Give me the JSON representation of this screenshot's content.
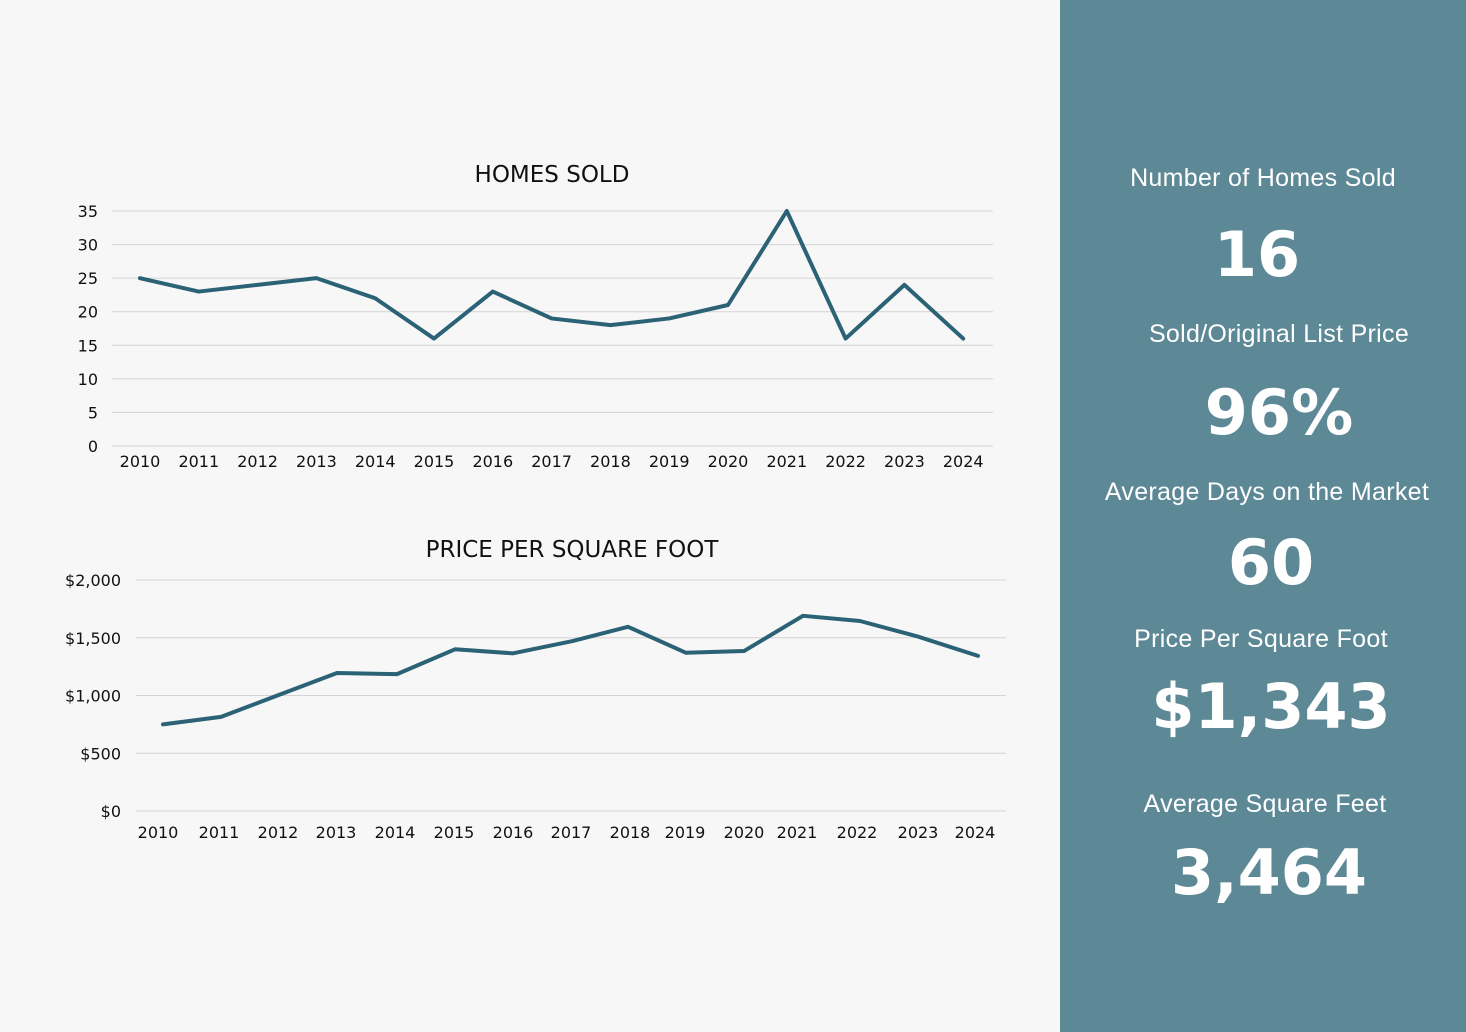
{
  "chart_data": [
    {
      "type": "line",
      "title": "HOMES SOLD",
      "x": [
        "2010",
        "2011",
        "2012",
        "2013",
        "2014",
        "2015",
        "2016",
        "2017",
        "2018",
        "2019",
        "2020",
        "2021",
        "2022",
        "2023",
        "2024"
      ],
      "series": [
        {
          "values": [
            25,
            23,
            24,
            25,
            22,
            16,
            23,
            19,
            18,
            19,
            21,
            35,
            16,
            24,
            16
          ]
        }
      ],
      "yticks": [
        "0",
        "5",
        "10",
        "15",
        "20",
        "25",
        "30",
        "35"
      ],
      "ylim": [
        0,
        35
      ],
      "grid": true,
      "legend": "none"
    },
    {
      "type": "line",
      "title": "PRICE PER SQUARE FOOT",
      "x": [
        "2010",
        "2011",
        "2012",
        "2013",
        "2014",
        "2015",
        "2016",
        "2017",
        "2018",
        "2019",
        "2020",
        "2021",
        "2022",
        "2023",
        "2024"
      ],
      "series": [
        {
          "values": [
            750,
            815,
            1005,
            1195,
            1185,
            1400,
            1365,
            1470,
            1595,
            1370,
            1385,
            1690,
            1645,
            1510,
            1343
          ]
        }
      ],
      "yticks": [
        "$0",
        "$500",
        "$1,000",
        "$1,500",
        "$2,000"
      ],
      "ylim": [
        0,
        2000
      ],
      "grid": true,
      "legend": "none"
    }
  ],
  "stats": {
    "homes_sold": {
      "label": "Number of Homes Sold",
      "value": "16"
    },
    "sold_list": {
      "label": "Sold/Original List Price",
      "value": "96%"
    },
    "days_market": {
      "label": "Average Days on the Market",
      "value": "60"
    },
    "price_sqft": {
      "label": "Price Per Square Foot",
      "value": "$1,343"
    },
    "avg_sqft": {
      "label": "Average Square Feet",
      "value": "3,464"
    }
  },
  "colors": {
    "line": "#2b6276",
    "sidebar": "#5d8997",
    "text": "#111111"
  }
}
